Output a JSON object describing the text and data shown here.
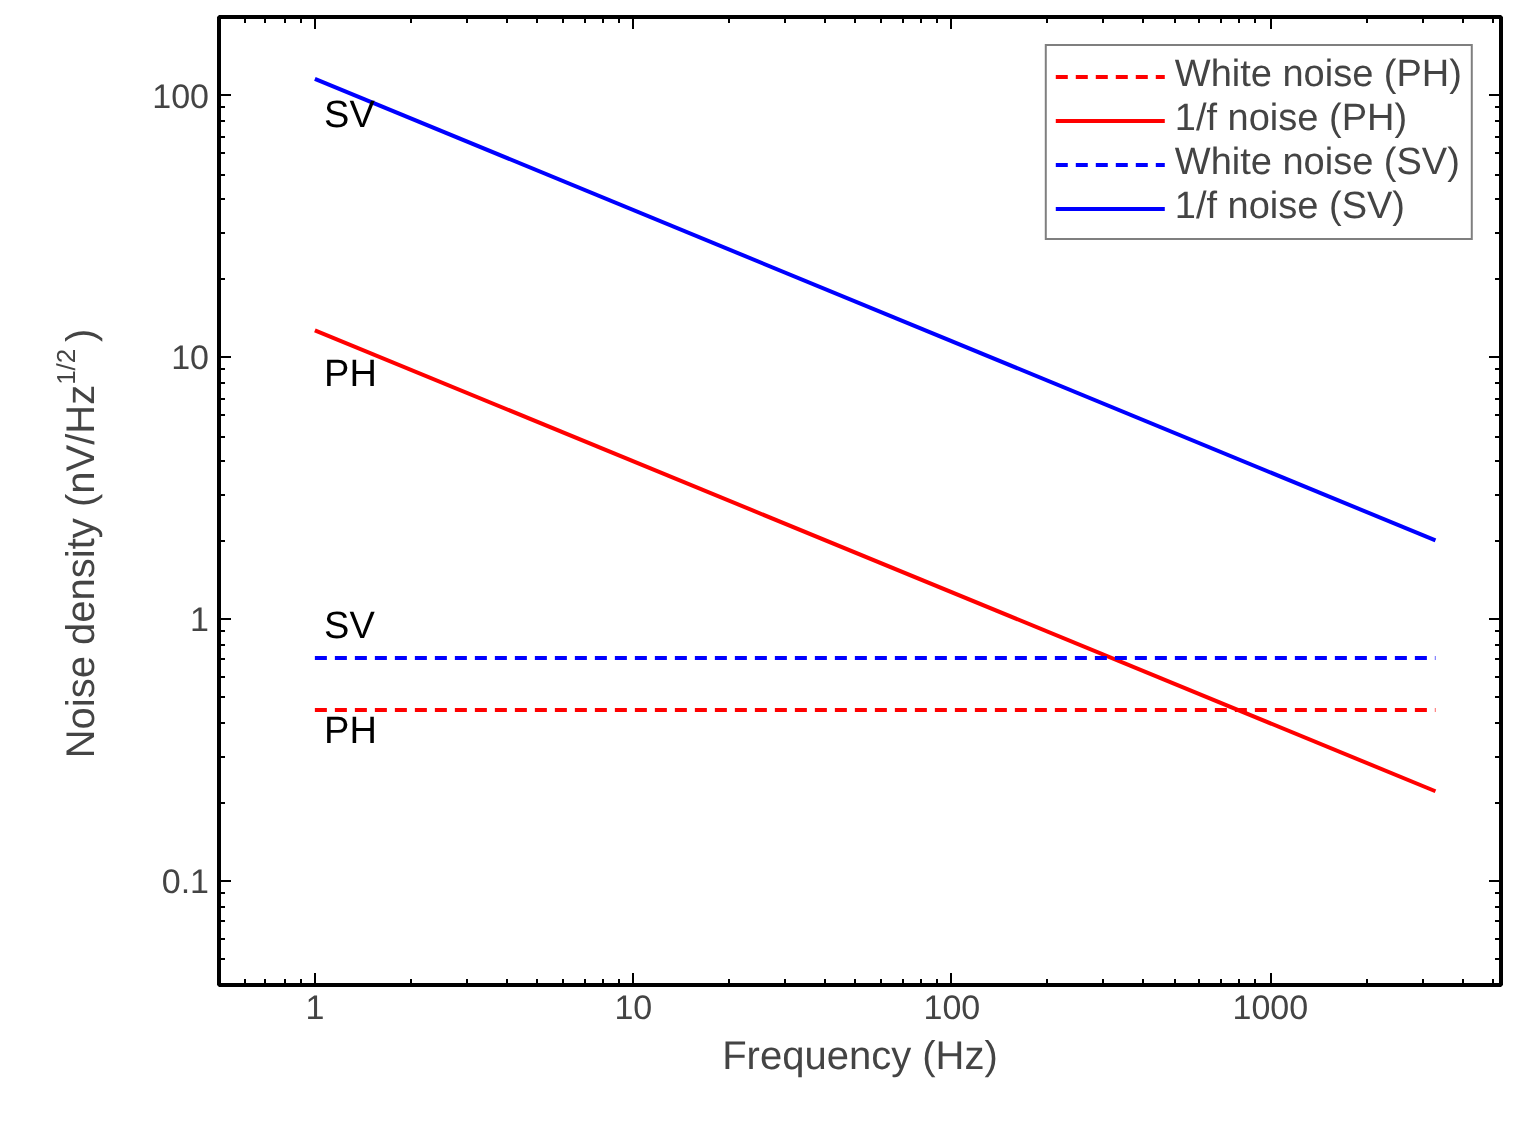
{
  "chart_data": {
    "type": "line",
    "xlabel": "Frequency (Hz)",
    "ylabel": "Noise density (nV/Hz$^{1/2}$)",
    "log": "xy",
    "x": [
      1,
      3300
    ],
    "xlim": [
      0.5,
      5300
    ],
    "xticks": [
      1,
      10,
      100,
      1000
    ],
    "ylim": [
      0.04,
      200
    ],
    "yticks": [
      0.1,
      1,
      10,
      100
    ],
    "grid": false,
    "legend": "top right",
    "series": [
      {
        "name": "White noise (PH)",
        "color": "#ff0000",
        "line_style": "dashed",
        "values": [
          0.45,
          0.45
        ]
      },
      {
        "name": "1/f noise (PH)",
        "color": "#ff0000",
        "line_style": "solid",
        "values": [
          12.7,
          0.22
        ]
      },
      {
        "name": "White noise (SV)",
        "color": "#0000ff",
        "line_style": "dashed",
        "values": [
          0.71,
          0.71
        ]
      },
      {
        "name": "1/f noise (SV)",
        "color": "#0000ff",
        "line_style": "solid",
        "values": [
          116,
          2.0
        ]
      }
    ],
    "annotations": [
      "SV",
      "PH",
      "SV",
      "PH"
    ]
  }
}
